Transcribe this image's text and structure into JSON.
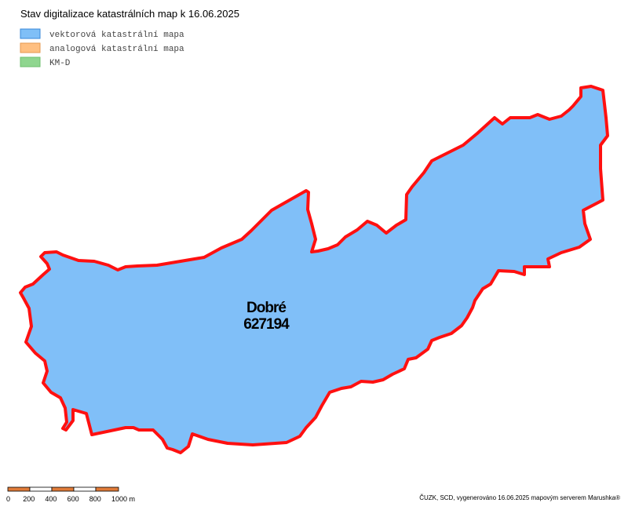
{
  "header": {
    "title": "Stav digitalizace katastrálních map k 16.06.2025"
  },
  "legend": [
    {
      "label": "vektorová katastrální mapa",
      "color": "#7fbff7"
    },
    {
      "label": "analogová katastrální mapa",
      "color": "#ffbf80"
    },
    {
      "label": "KM-D",
      "color": "#8fd68f"
    }
  ],
  "area": {
    "name": "Dobré",
    "code": "627194"
  },
  "scale_bar": {
    "labels": [
      "0",
      "200",
      "400",
      "600",
      "800",
      "1000 m"
    ]
  },
  "footer": {
    "credit": "ČUZK, SCD, vygenerováno 16.06.2025 mapovým serverem Marushka®"
  }
}
